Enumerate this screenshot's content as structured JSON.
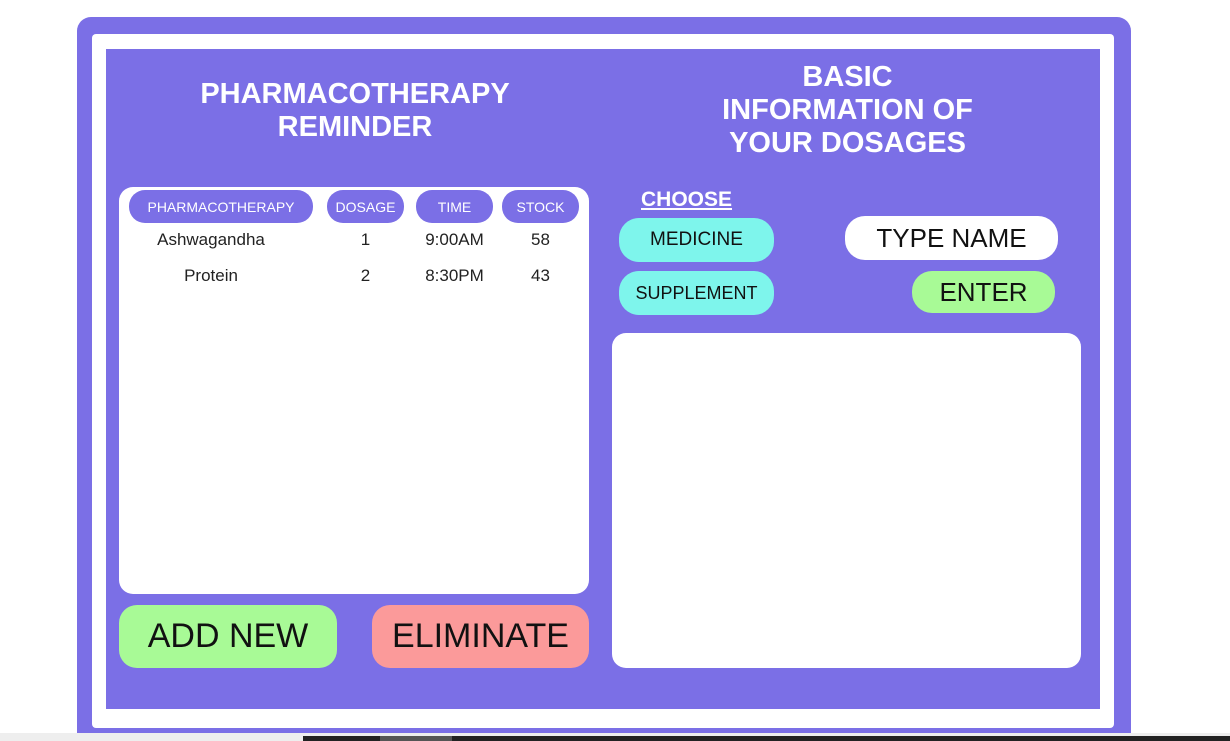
{
  "left_panel": {
    "title": "PHARMACOTHERAPY\nREMINDER",
    "table": {
      "headers": [
        "PHARMACOTHERAPY",
        "DOSAGE",
        "TIME",
        "STOCK"
      ],
      "rows": [
        [
          "Ashwagandha",
          "1",
          "9:00AM",
          "58"
        ],
        [
          "Protein",
          "2",
          "8:30PM",
          "43"
        ]
      ]
    },
    "add_button": "ADD NEW",
    "eliminate_button": "ELIMINATE"
  },
  "right_panel": {
    "title": "BASIC\nINFORMATION OF\nYOUR DOSAGES",
    "choose_label": "CHOOSE",
    "medicine_button": "MEDICINE",
    "supplement_button": "SUPPLEMENT",
    "name_input": "TYPE NAME",
    "enter_button": "ENTER"
  },
  "colors": {
    "panel": "#7b6fe6",
    "green": "#a8fa96",
    "red": "#fb9a9a",
    "cyan": "#7ef5ec"
  }
}
